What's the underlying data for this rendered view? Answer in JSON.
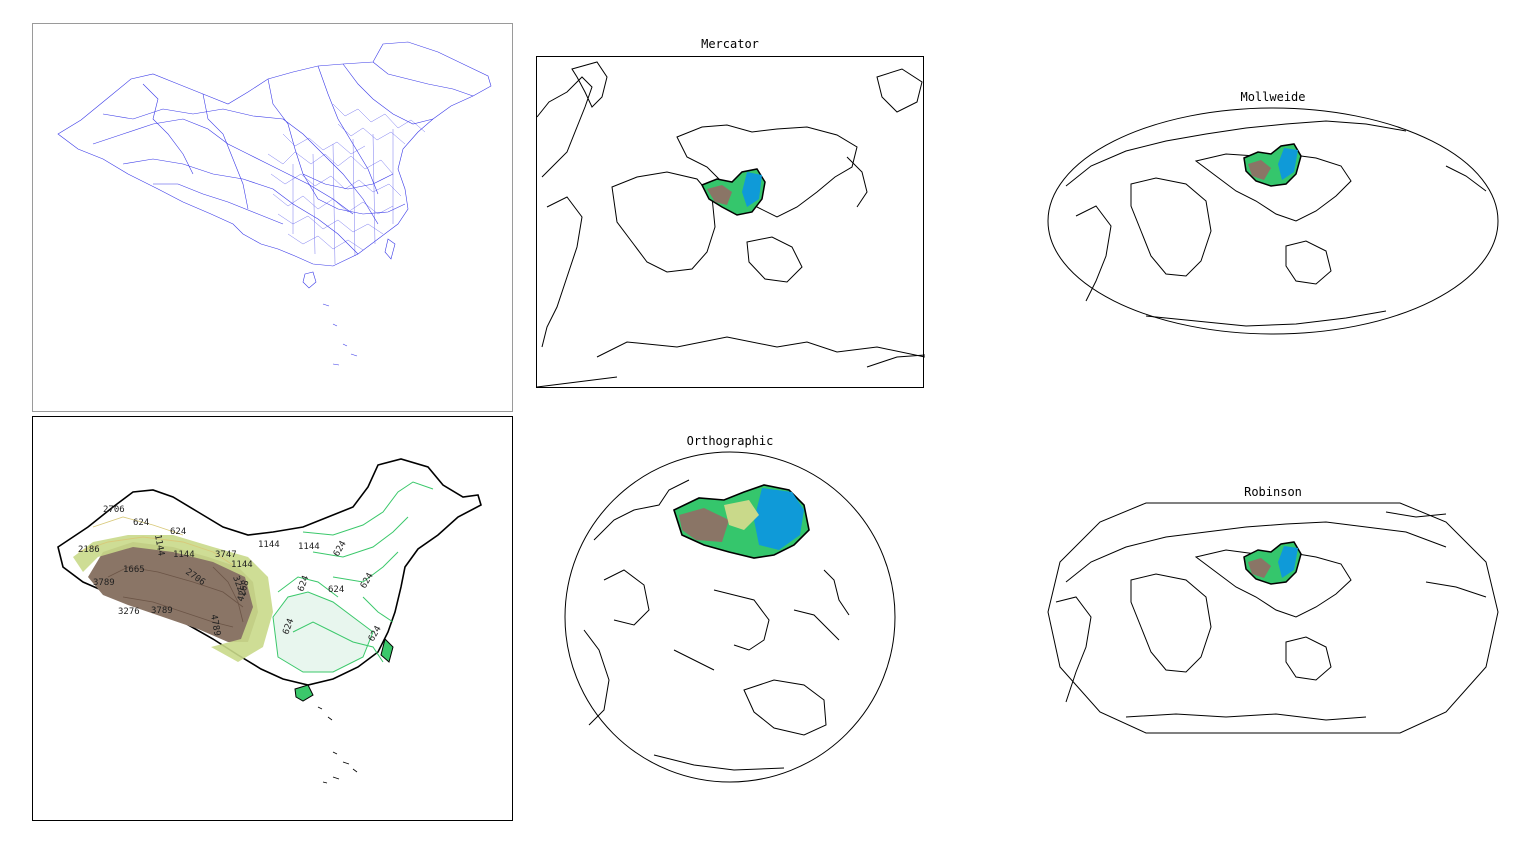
{
  "figure": {
    "panels": [
      {
        "id": "admin-boundaries",
        "title": "",
        "projection": "PlateCarree (China counties)",
        "boundary_color": "#2a2ae6"
      },
      {
        "id": "china-topography",
        "title": "",
        "contour_labels": [
          "624",
          "1144",
          "2186",
          "2706",
          "1144",
          "624",
          "1144",
          "1665",
          "2706",
          "3747",
          "1144",
          "1144",
          "624",
          "624",
          "624",
          "624",
          "3227",
          "3789",
          "3276",
          "4789",
          "3789",
          "4268",
          "624",
          "624"
        ]
      },
      {
        "id": "mercator",
        "title": "Mercator"
      },
      {
        "id": "mollweide",
        "title": "Mollweide"
      },
      {
        "id": "orthographic",
        "title": "Orthographic"
      },
      {
        "id": "robinson",
        "title": "Robinson"
      }
    ],
    "colors": {
      "coastline": "#000000",
      "terrain_low": "#0f9ad8",
      "terrain_plain": "#35c66c",
      "terrain_mid": "#c9d98a",
      "terrain_high": "#8a7566",
      "terrain_peak": "#6b5446",
      "contour_green": "#3bc86b"
    }
  }
}
